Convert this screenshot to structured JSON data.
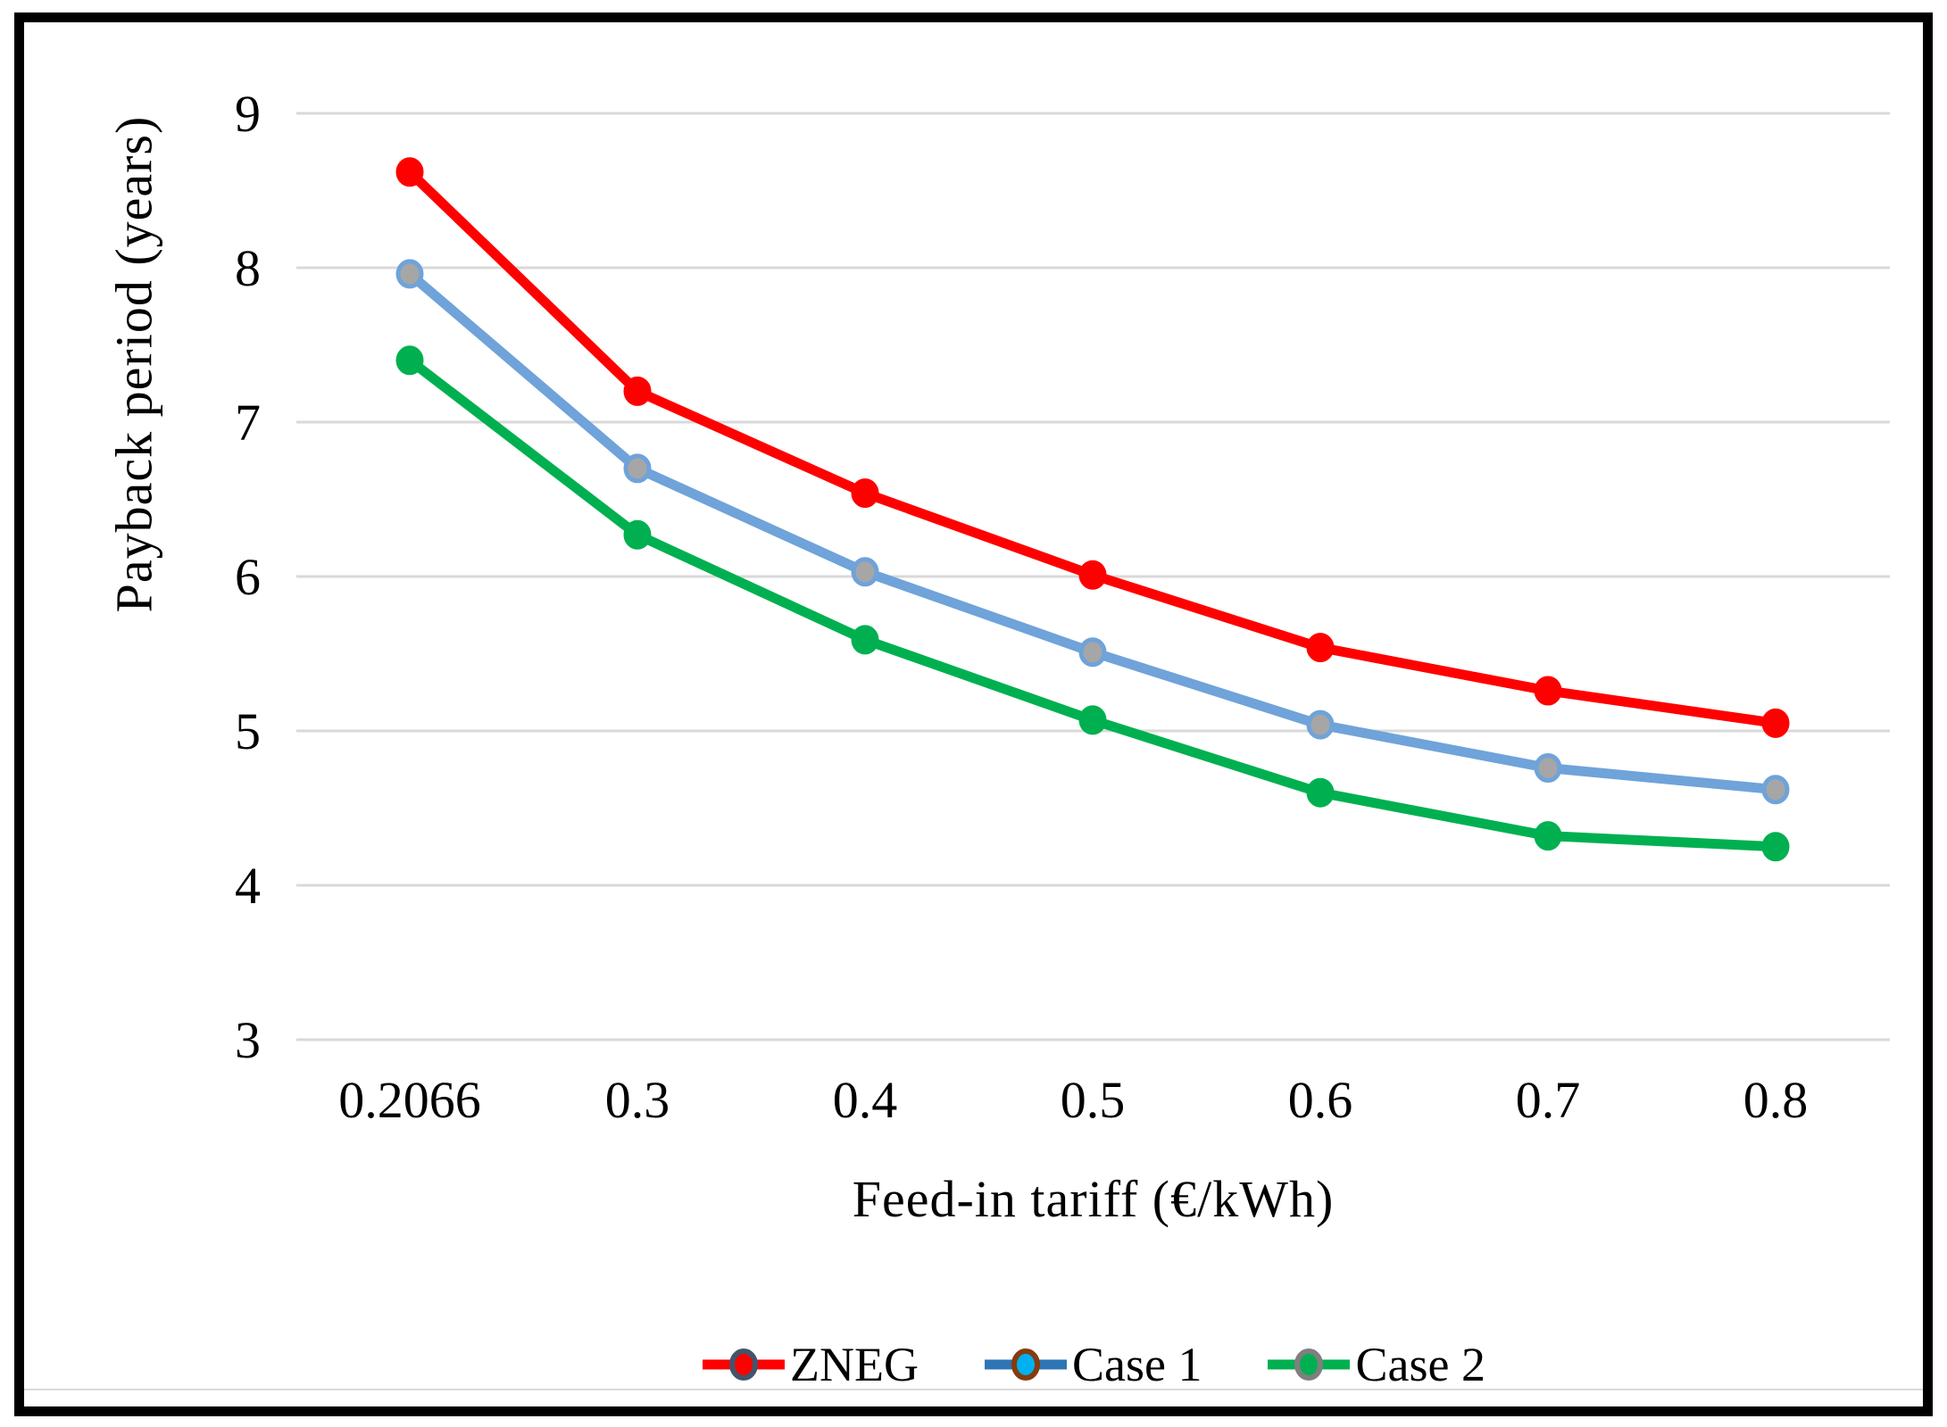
{
  "chart_data": {
    "type": "line",
    "xlabel": "Feed-in tariff (€/kWh)",
    "ylabel": "Payback period (years)",
    "categories": [
      "0.2066",
      "0.3",
      "0.4",
      "0.5",
      "0.6",
      "0.7",
      "0.8"
    ],
    "y_ticks": [
      9,
      8,
      7,
      6,
      5,
      4,
      3
    ],
    "ylim": [
      3,
      9
    ],
    "grid": "horizontal-only",
    "gridline_color": "#d9d9d9",
    "legend_position": "bottom-center",
    "series": [
      {
        "name": "ZNEG",
        "line_color": "#ff0000",
        "marker_fill": "#ff0000",
        "marker_stroke": "#ff0000",
        "legend_line_color": "#ff0000",
        "legend_marker_fill": "#ff0000",
        "legend_marker_stroke": "#44546a",
        "values": [
          8.62,
          7.2,
          6.54,
          6.01,
          5.54,
          5.26,
          5.05
        ]
      },
      {
        "name": "Case 1",
        "line_color": "#6fa3d9",
        "marker_fill": "#a6a6a6",
        "marker_stroke": "#6fa3d9",
        "legend_line_color": "#2e75b6",
        "legend_marker_fill": "#00b0f0",
        "legend_marker_stroke": "#843c0c",
        "values": [
          7.96,
          6.7,
          6.03,
          5.51,
          5.04,
          4.76,
          4.62
        ]
      },
      {
        "name": "Case 2",
        "line_color": "#00b050",
        "marker_fill": "#00b050",
        "marker_stroke": "#00b050",
        "legend_line_color": "#00b050",
        "legend_marker_fill": "#00b050",
        "legend_marker_stroke": "#7f7f7f",
        "values": [
          7.4,
          6.27,
          5.59,
          5.07,
          4.6,
          4.32,
          4.25
        ]
      }
    ]
  }
}
